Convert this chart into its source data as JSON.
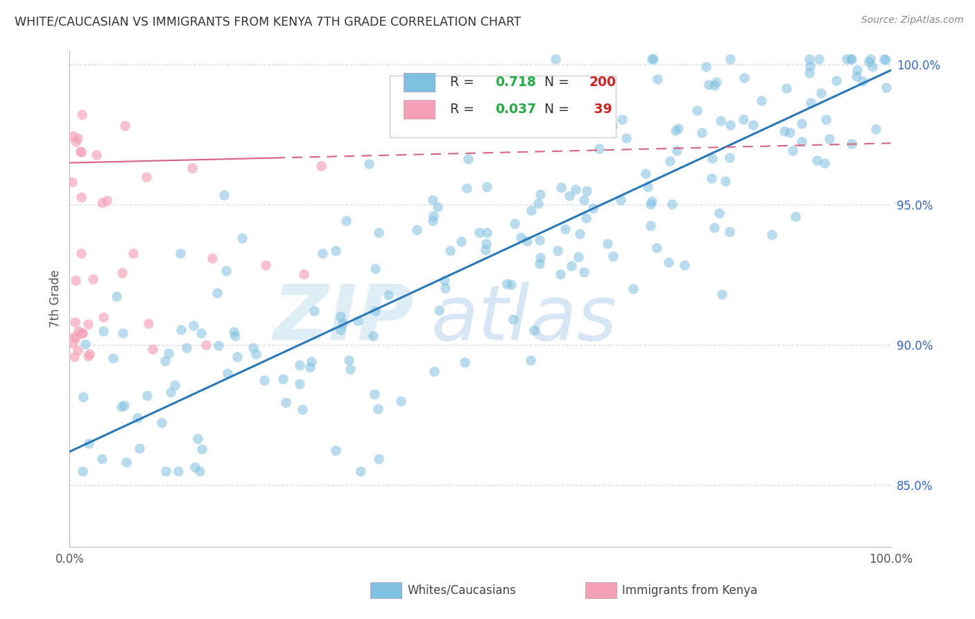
{
  "title": "WHITE/CAUCASIAN VS IMMIGRANTS FROM KENYA 7TH GRADE CORRELATION CHART",
  "source_text": "Source: ZipAtlas.com",
  "ylabel": "7th Grade",
  "right_yticks": [
    85.0,
    90.0,
    95.0,
    100.0
  ],
  "blue_R": 0.718,
  "blue_N": 200,
  "pink_R": 0.037,
  "pink_N": 39,
  "blue_color": "#7fbfdf",
  "pink_color": "#f4a0b8",
  "blue_line_color": "#2878b8",
  "pink_line_color": "#d86080",
  "watermark_zip": "ZIP",
  "watermark_atlas": "atlas",
  "xlim": [
    0.0,
    1.0
  ],
  "ylim": [
    0.828,
    1.005
  ],
  "blue_line_y0": 0.862,
  "blue_line_y1": 0.998,
  "pink_line_y0": 0.965,
  "pink_line_y1": 0.972
}
